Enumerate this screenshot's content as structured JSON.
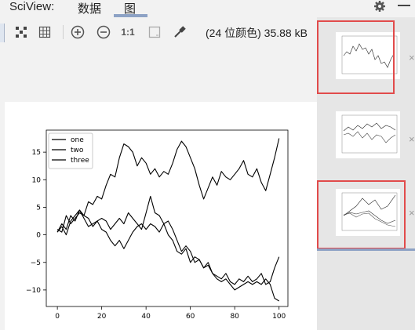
{
  "header": {
    "app_label": "SciView:",
    "tabs": [
      {
        "label": "数据",
        "active": false
      },
      {
        "label": "图",
        "active": true
      }
    ]
  },
  "toolbar": {
    "tools": [
      "fit-icon",
      "grid-icon",
      "zoom-in-icon",
      "zoom-out-icon",
      "actual-size-icon",
      "frame-icon",
      "eyedropper-icon"
    ],
    "actual_size_label": "1:1",
    "image_info": "(24 位颜色) 35.88 kB"
  },
  "thumbnails": [
    {
      "name": "plot-thumbnail-1",
      "highlighted": true,
      "close": "×"
    },
    {
      "name": "plot-thumbnail-2",
      "highlighted": false,
      "close": "×"
    },
    {
      "name": "plot-thumbnail-3",
      "highlighted": true,
      "selected": true,
      "close": "×"
    }
  ],
  "chart_data": {
    "type": "line",
    "title": "",
    "xlabel": "",
    "ylabel": "",
    "xlim": [
      -5,
      104
    ],
    "ylim": [
      -13,
      19
    ],
    "xticks": [
      "0",
      "20",
      "40",
      "60",
      "80",
      "100"
    ],
    "yticks": [
      "15",
      "10",
      "5",
      "0",
      "−5",
      "−10"
    ],
    "legend_placement": "top-left",
    "grid": false,
    "series": [
      {
        "name": "one",
        "color": "#000000",
        "x": [
          0,
          2,
          4,
          6,
          8,
          10,
          12,
          14,
          16,
          18,
          20,
          22,
          24,
          26,
          28,
          30,
          32,
          34,
          36,
          38,
          40,
          42,
          44,
          46,
          48,
          50,
          52,
          54,
          56,
          58,
          60,
          62,
          64,
          66,
          68,
          70,
          72,
          74,
          76,
          78,
          80,
          82,
          84,
          86,
          88,
          90,
          92,
          94,
          96,
          98,
          100
        ],
        "values": [
          0.5,
          2,
          1,
          3.5,
          2.5,
          4.5,
          3.5,
          6,
          5.5,
          7,
          6.5,
          9,
          11,
          10.5,
          14,
          16.5,
          16,
          15,
          12.5,
          14,
          13,
          11,
          12,
          10.5,
          11.5,
          11,
          13,
          15.5,
          17,
          16,
          14,
          12,
          9,
          6.5,
          8.5,
          10.5,
          9,
          11.5,
          10.5,
          10,
          11,
          12,
          13.5,
          11,
          10.5,
          12,
          9.5,
          8,
          11,
          14,
          17.5
        ]
      },
      {
        "name": "two",
        "color": "#000000",
        "x": [
          0,
          2,
          4,
          6,
          8,
          10,
          12,
          14,
          16,
          18,
          20,
          22,
          24,
          26,
          28,
          30,
          32,
          34,
          36,
          38,
          40,
          42,
          44,
          46,
          48,
          50,
          52,
          54,
          56,
          58,
          60,
          62,
          64,
          66,
          68,
          70,
          72,
          74,
          76,
          78,
          80,
          82,
          84,
          86,
          88,
          90,
          92,
          94,
          96,
          98,
          100
        ],
        "values": [
          0.5,
          1.5,
          0,
          2.5,
          3.5,
          4.5,
          3,
          1.5,
          2,
          2.5,
          3,
          2.5,
          1,
          2,
          3,
          2,
          4,
          3,
          2,
          1,
          4,
          7,
          4,
          3.5,
          2,
          2.5,
          1,
          -1,
          -3,
          -2,
          -3,
          -5,
          -4.5,
          -6,
          -5.5,
          -7,
          -7.5,
          -8,
          -7,
          -8.5,
          -9,
          -8,
          -8.5,
          -7.5,
          -8.5,
          -8,
          -7,
          -9,
          -8.5,
          -6,
          -4
        ]
      },
      {
        "name": "three",
        "color": "#000000",
        "x": [
          0,
          2,
          4,
          6,
          8,
          10,
          12,
          14,
          16,
          18,
          20,
          22,
          24,
          26,
          28,
          30,
          32,
          34,
          36,
          38,
          40,
          42,
          44,
          46,
          48,
          50,
          52,
          54,
          56,
          58,
          60,
          62,
          64,
          66,
          68,
          70,
          72,
          74,
          76,
          78,
          80,
          82,
          84,
          86,
          88,
          90,
          92,
          94,
          96,
          98,
          100
        ],
        "values": [
          1,
          0.5,
          3.5,
          2,
          3,
          4,
          3.5,
          3,
          1.5,
          2.5,
          1,
          0.5,
          -1,
          -2,
          -1,
          -2.5,
          -1,
          0.5,
          1.5,
          2,
          1,
          2,
          1.5,
          0.5,
          2,
          0,
          -1,
          -3,
          -3.5,
          -2.5,
          -5,
          -4,
          -4.5,
          -6,
          -5,
          -7,
          -8,
          -8.5,
          -8,
          -9,
          -10,
          -9.5,
          -9,
          -8.5,
          -9,
          -8.5,
          -9,
          -8,
          -9,
          -11.5,
          -12
        ]
      }
    ]
  }
}
